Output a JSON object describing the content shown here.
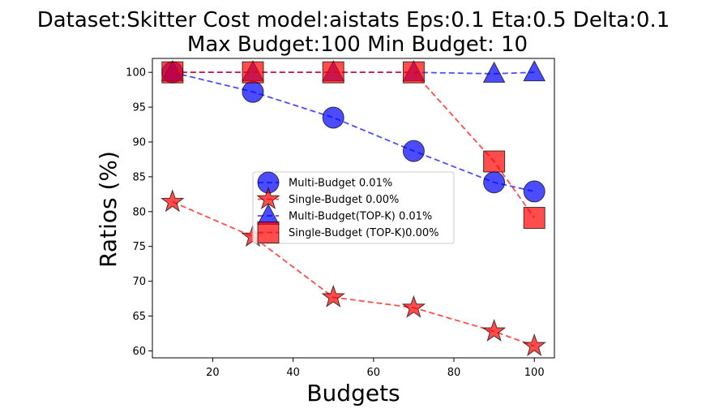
{
  "chart_data": {
    "type": "line",
    "title_line1": "Dataset:Skitter Cost model:aistats Eps:0.1 Eta:0.5 Delta:0.1",
    "title_line2": "Max Budget:100 Min Budget: 10",
    "xlabel": "Budgets",
    "ylabel": "Ratios (%)",
    "xlim": [
      5,
      105
    ],
    "ylim": [
      59,
      102
    ],
    "xticks": [
      20,
      40,
      60,
      80,
      100
    ],
    "yticks": [
      60,
      65,
      70,
      75,
      80,
      85,
      90,
      95,
      100
    ],
    "x": [
      10,
      30,
      50,
      70,
      90,
      100
    ],
    "grid": false,
    "legend_position": "center",
    "series": [
      {
        "name": "Multi-Budget 0.01%",
        "marker": "circle",
        "color": "#0000ff",
        "values": [
          100,
          97.2,
          93.5,
          88.7,
          84.2,
          82.9
        ]
      },
      {
        "name": "Single-Budget 0.00%",
        "marker": "star",
        "color": "#ff0000",
        "values": [
          81.4,
          76.4,
          67.7,
          66.2,
          62.8,
          60.7
        ]
      },
      {
        "name": "Multi-Budget(TOP-K) 0.01%",
        "marker": "triangle",
        "color": "#0000ff",
        "values": [
          100,
          100,
          100,
          100,
          99.8,
          100
        ]
      },
      {
        "name": "Single-Budget (TOP-K)0.00%",
        "marker": "square",
        "color": "#ff0000",
        "values": [
          100,
          100,
          100,
          100,
          87.2,
          79.1
        ]
      }
    ]
  }
}
